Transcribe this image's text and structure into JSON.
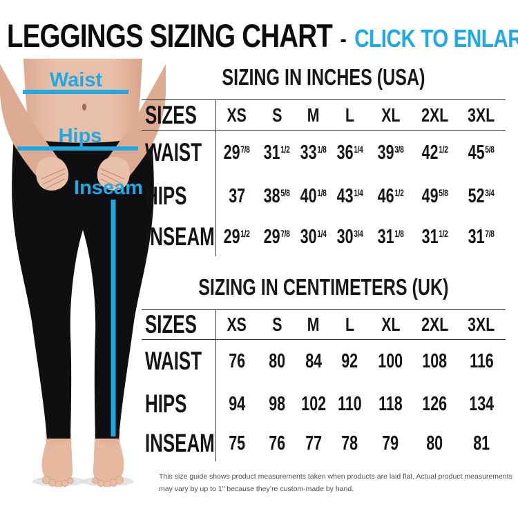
{
  "title": {
    "main": "LEGGINGS SIZING CHART",
    "separator": "-",
    "action": "CLICK TO ENLARGE"
  },
  "colors": {
    "accent": "#1FA9E4",
    "ink": "#141414",
    "rule": "#2e2e2e",
    "skin": "#e6bba4",
    "skin_shadow": "#dcab92",
    "leggings": "#0f0f11"
  },
  "figure": {
    "waist_label": "Waist",
    "hips_label": "Hips",
    "inseam_label": "Inseam"
  },
  "chart_data": [
    {
      "type": "table",
      "title": "SIZING IN INCHES (USA)",
      "columns": [
        "SIZES",
        "XS",
        "S",
        "M",
        "L",
        "XL",
        "2XL",
        "3XL"
      ],
      "rows": [
        {
          "label": "WAIST",
          "values": [
            "29 7/8",
            "31 1/2",
            "33 1/8",
            "36 1/4",
            "39 3/8",
            "42 1/2",
            "45 5/8"
          ]
        },
        {
          "label": "HIPS",
          "values": [
            "37",
            "38 5/8",
            "40 1/8",
            "43 1/4",
            "46 1/2",
            "49 5/8",
            "52 3/4"
          ]
        },
        {
          "label": "INSEAM",
          "values": [
            "29 1/2",
            "29 7/8",
            "30 1/4",
            "30 3/4",
            "31 1/8",
            "31 1/2",
            "31 7/8"
          ]
        }
      ]
    },
    {
      "type": "table",
      "title": "SIZING IN CENTIMETERS (UK)",
      "columns": [
        "SIZES",
        "XS",
        "S",
        "M",
        "L",
        "XL",
        "2XL",
        "3XL"
      ],
      "rows": [
        {
          "label": "WAIST",
          "values": [
            "76",
            "80",
            "84",
            "92",
            "100",
            "108",
            "116"
          ]
        },
        {
          "label": "HIPS",
          "values": [
            "94",
            "98",
            "102",
            "110",
            "118",
            "126",
            "134"
          ]
        },
        {
          "label": "INSEAM",
          "values": [
            "75",
            "76",
            "77",
            "78",
            "79",
            "80",
            "81"
          ]
        }
      ]
    }
  ],
  "footnote": "This size guide shows product measurements taken when products are laid flat. Actual product measurements may vary by up to 1\" because they’re custom-made by hand."
}
